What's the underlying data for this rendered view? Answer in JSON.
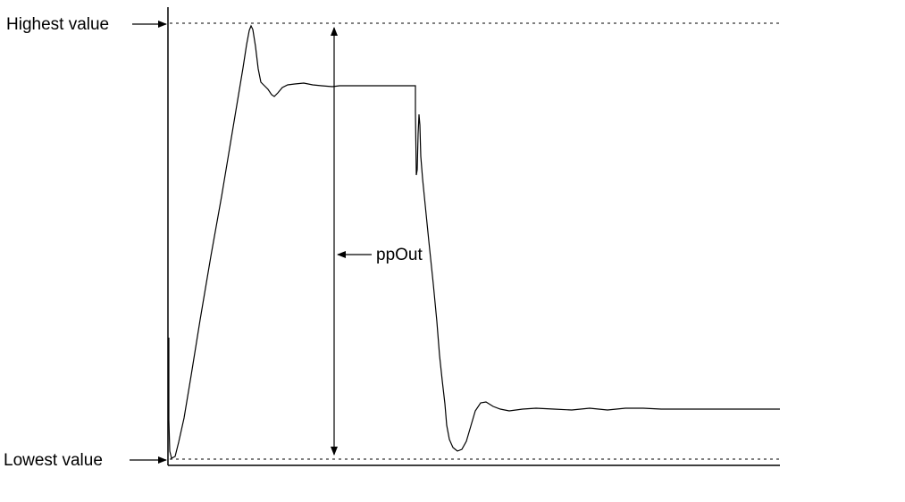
{
  "labels": {
    "highest": "Highest value",
    "lowest": "Lowest value",
    "signal": "ppOut"
  },
  "colors": {
    "line": "#000000",
    "background": "#ffffff"
  }
}
